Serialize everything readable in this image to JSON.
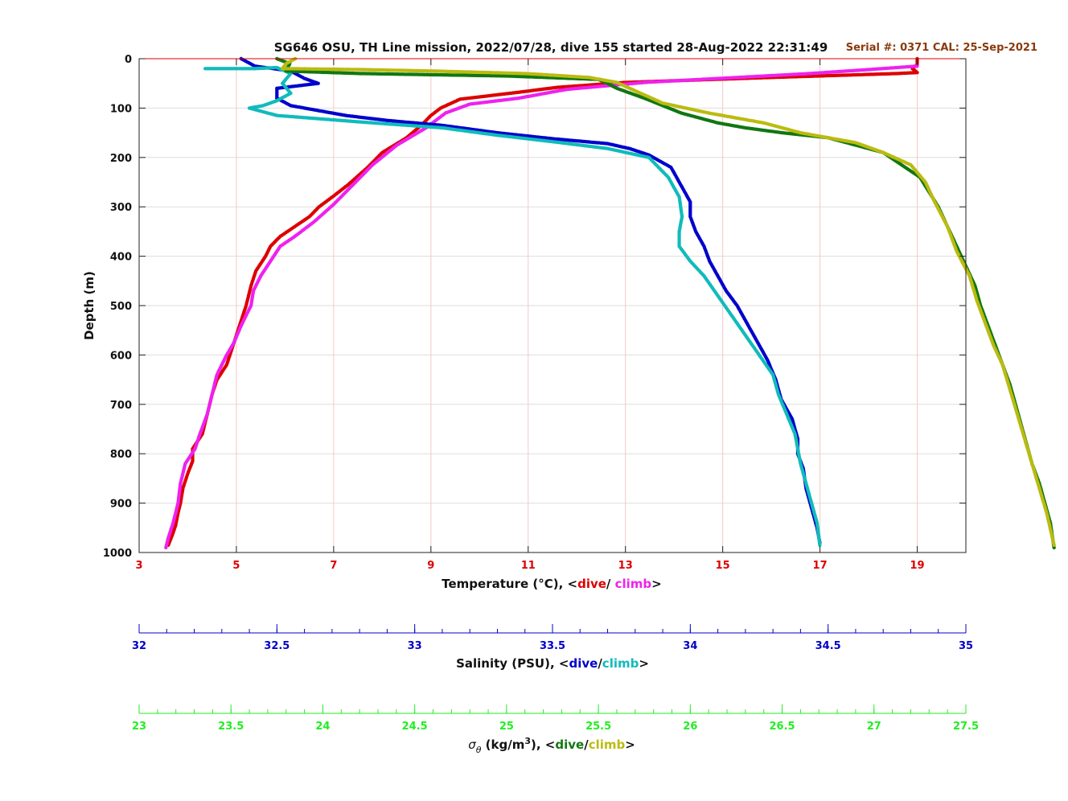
{
  "chart_data": {
    "type": "scatter",
    "title": "SG646 OSU, TH Line mission, 2022/07/28, dive 155 started 28-Aug-2022 22:31:49",
    "annotation": "Serial #: 0371  CAL: 25-Sep-2021",
    "grid": true,
    "y_axis": {
      "label": "Depth (m)",
      "reversed": true,
      "range": [
        0,
        1000
      ],
      "ticks": [
        "0",
        "100",
        "200",
        "300",
        "400",
        "500",
        "600",
        "700",
        "800",
        "900",
        "1000"
      ]
    },
    "x_axes": [
      {
        "key": "temperature",
        "label_prefix": "Temperature (°C), <",
        "label_dive": "dive",
        "label_sep": "/ ",
        "label_climb": "climb",
        "label_suffix": ">",
        "range": [
          3,
          20
        ],
        "ticks": [
          "3",
          "5",
          "7",
          "9",
          "11",
          "13",
          "15",
          "17",
          "19"
        ],
        "color": "#dd0000"
      },
      {
        "key": "salinity",
        "label_prefix": "Salinity (PSU), <",
        "label_dive": "dive",
        "label_sep": "/",
        "label_climb": "climb",
        "label_suffix": ">",
        "range": [
          32,
          35
        ],
        "ticks": [
          "32",
          "32.5",
          "33",
          "33.5",
          "34",
          "34.5",
          "35"
        ],
        "color": "#0000cc"
      },
      {
        "key": "sigma",
        "label_symbol": "σ",
        "label_sub": "θ",
        "label_unit": " (kg/m",
        "label_sup": "3",
        "label_prefix": "), <",
        "label_dive": "dive",
        "label_sep": "/",
        "label_climb": "climb",
        "label_suffix": ">",
        "range": [
          23,
          27.5
        ],
        "ticks": [
          "23",
          "23.5",
          "24",
          "24.5",
          "25",
          "25.5",
          "26",
          "26.5",
          "27",
          "27.5"
        ],
        "color": "#22ee22"
      }
    ],
    "series": [
      {
        "name": "dive",
        "axis": "temperature",
        "color": "#dd0000",
        "points": [
          [
            19.0,
            0
          ],
          [
            19.0,
            5
          ],
          [
            19.0,
            12
          ],
          [
            18.9,
            20
          ],
          [
            19.0,
            28
          ],
          [
            18.6,
            30
          ],
          [
            16.0,
            38
          ],
          [
            13.0,
            48
          ],
          [
            11.6,
            58
          ],
          [
            10.8,
            68
          ],
          [
            9.6,
            82
          ],
          [
            9.2,
            100
          ],
          [
            9.0,
            115
          ],
          [
            8.8,
            135
          ],
          [
            8.5,
            160
          ],
          [
            8.0,
            190
          ],
          [
            7.7,
            220
          ],
          [
            7.3,
            255
          ],
          [
            7.0,
            278
          ],
          [
            6.7,
            300
          ],
          [
            6.5,
            320
          ],
          [
            6.2,
            340
          ],
          [
            5.9,
            360
          ],
          [
            5.7,
            380
          ],
          [
            5.6,
            400
          ],
          [
            5.4,
            430
          ],
          [
            5.3,
            460
          ],
          [
            5.2,
            500
          ],
          [
            5.1,
            530
          ],
          [
            5.0,
            560
          ],
          [
            4.9,
            590
          ],
          [
            4.8,
            620
          ],
          [
            4.6,
            650
          ],
          [
            4.5,
            680
          ],
          [
            4.4,
            720
          ],
          [
            4.3,
            760
          ],
          [
            4.1,
            790
          ],
          [
            4.1,
            815
          ],
          [
            4.0,
            840
          ],
          [
            3.9,
            870
          ],
          [
            3.85,
            900
          ],
          [
            3.8,
            920
          ],
          [
            3.75,
            945
          ],
          [
            3.7,
            960
          ],
          [
            3.6,
            985
          ]
        ]
      },
      {
        "name": "climb",
        "axis": "temperature",
        "color": "#ee22ee",
        "points": [
          [
            19.0,
            15
          ],
          [
            18.0,
            22
          ],
          [
            16.8,
            30
          ],
          [
            15.3,
            38
          ],
          [
            13.4,
            48
          ],
          [
            11.8,
            62
          ],
          [
            10.8,
            80
          ],
          [
            9.8,
            92
          ],
          [
            9.3,
            110
          ],
          [
            8.9,
            140
          ],
          [
            8.3,
            175
          ],
          [
            7.8,
            215
          ],
          [
            7.4,
            255
          ],
          [
            7.0,
            295
          ],
          [
            6.6,
            330
          ],
          [
            6.2,
            360
          ],
          [
            5.9,
            380
          ],
          [
            5.7,
            410
          ],
          [
            5.5,
            440
          ],
          [
            5.35,
            470
          ],
          [
            5.3,
            500
          ],
          [
            5.1,
            540
          ],
          [
            4.95,
            575
          ],
          [
            4.8,
            600
          ],
          [
            4.6,
            640
          ],
          [
            4.5,
            680
          ],
          [
            4.4,
            720
          ],
          [
            4.25,
            760
          ],
          [
            4.15,
            790
          ],
          [
            3.95,
            820
          ],
          [
            3.85,
            860
          ],
          [
            3.8,
            900
          ],
          [
            3.7,
            940
          ],
          [
            3.6,
            970
          ],
          [
            3.55,
            990
          ]
        ]
      },
      {
        "name": "dive",
        "axis": "salinity",
        "color": "#0000cc",
        "points": [
          [
            32.37,
            0
          ],
          [
            32.42,
            15
          ],
          [
            32.55,
            25
          ],
          [
            32.6,
            40
          ],
          [
            32.65,
            50
          ],
          [
            32.5,
            60
          ],
          [
            32.5,
            80
          ],
          [
            32.55,
            95
          ],
          [
            32.65,
            105
          ],
          [
            32.75,
            115
          ],
          [
            32.9,
            125
          ],
          [
            33.1,
            135
          ],
          [
            33.3,
            150
          ],
          [
            33.5,
            162
          ],
          [
            33.7,
            172
          ],
          [
            33.78,
            182
          ],
          [
            33.85,
            195
          ],
          [
            33.93,
            220
          ],
          [
            33.97,
            260
          ],
          [
            34.0,
            290
          ],
          [
            34.0,
            320
          ],
          [
            34.02,
            350
          ],
          [
            34.05,
            380
          ],
          [
            34.07,
            410
          ],
          [
            34.1,
            440
          ],
          [
            34.13,
            470
          ],
          [
            34.17,
            500
          ],
          [
            34.2,
            530
          ],
          [
            34.24,
            570
          ],
          [
            34.28,
            610
          ],
          [
            34.31,
            650
          ],
          [
            34.33,
            690
          ],
          [
            34.37,
            730
          ],
          [
            34.39,
            770
          ],
          [
            34.39,
            800
          ],
          [
            34.41,
            830
          ],
          [
            34.42,
            870
          ],
          [
            34.44,
            910
          ],
          [
            34.46,
            950
          ],
          [
            34.47,
            980
          ]
        ]
      },
      {
        "name": "climb",
        "axis": "salinity",
        "color": "#11bbbb",
        "points": [
          [
            32.24,
            20
          ],
          [
            32.42,
            20
          ],
          [
            32.5,
            18
          ],
          [
            32.55,
            30
          ],
          [
            32.52,
            50
          ],
          [
            32.55,
            70
          ],
          [
            32.5,
            85
          ],
          [
            32.45,
            95
          ],
          [
            32.4,
            100
          ],
          [
            32.5,
            115
          ],
          [
            32.8,
            128
          ],
          [
            33.1,
            140
          ],
          [
            33.3,
            155
          ],
          [
            33.5,
            168
          ],
          [
            33.7,
            182
          ],
          [
            33.85,
            200
          ],
          [
            33.92,
            240
          ],
          [
            33.96,
            280
          ],
          [
            33.97,
            320
          ],
          [
            33.96,
            350
          ],
          [
            33.96,
            380
          ],
          [
            34.0,
            410
          ],
          [
            34.05,
            440
          ],
          [
            34.1,
            480
          ],
          [
            34.15,
            520
          ],
          [
            34.2,
            560
          ],
          [
            34.25,
            600
          ],
          [
            34.3,
            640
          ],
          [
            34.32,
            680
          ],
          [
            34.35,
            720
          ],
          [
            34.38,
            760
          ],
          [
            34.39,
            790
          ],
          [
            34.4,
            820
          ],
          [
            34.42,
            860
          ],
          [
            34.44,
            900
          ],
          [
            34.46,
            940
          ],
          [
            34.47,
            985
          ]
        ]
      },
      {
        "name": "dive",
        "axis": "sigma",
        "color": "#117711",
        "points": [
          [
            23.75,
            0
          ],
          [
            23.82,
            10
          ],
          [
            23.8,
            25
          ],
          [
            24.2,
            30
          ],
          [
            25.0,
            35
          ],
          [
            25.5,
            42
          ],
          [
            25.55,
            50
          ],
          [
            25.6,
            60
          ],
          [
            25.75,
            80
          ],
          [
            25.95,
            110
          ],
          [
            26.15,
            130
          ],
          [
            26.3,
            140
          ],
          [
            26.5,
            150
          ],
          [
            26.75,
            160
          ],
          [
            26.9,
            175
          ],
          [
            27.05,
            190
          ],
          [
            27.15,
            215
          ],
          [
            27.25,
            240
          ],
          [
            27.3,
            270
          ],
          [
            27.35,
            300
          ],
          [
            27.4,
            340
          ],
          [
            27.45,
            380
          ],
          [
            27.5,
            420
          ],
          [
            27.55,
            460
          ],
          [
            27.58,
            500
          ],
          [
            27.62,
            540
          ],
          [
            27.66,
            580
          ],
          [
            27.7,
            620
          ],
          [
            27.74,
            660
          ],
          [
            27.77,
            700
          ],
          [
            27.8,
            740
          ],
          [
            27.83,
            780
          ],
          [
            27.86,
            820
          ],
          [
            27.9,
            860
          ],
          [
            27.93,
            900
          ],
          [
            27.96,
            940
          ],
          [
            27.98,
            990
          ]
        ]
      },
      {
        "name": "climb",
        "axis": "sigma",
        "color": "#bbbb11",
        "points": [
          [
            23.85,
            0
          ],
          [
            23.8,
            10
          ],
          [
            23.78,
            20
          ],
          [
            24.2,
            22
          ],
          [
            24.6,
            25
          ],
          [
            25.1,
            30
          ],
          [
            25.45,
            38
          ],
          [
            25.6,
            48
          ],
          [
            25.7,
            65
          ],
          [
            25.85,
            90
          ],
          [
            26.1,
            110
          ],
          [
            26.4,
            130
          ],
          [
            26.6,
            150
          ],
          [
            26.9,
            170
          ],
          [
            27.05,
            190
          ],
          [
            27.2,
            215
          ],
          [
            27.28,
            250
          ],
          [
            27.33,
            290
          ],
          [
            27.4,
            340
          ],
          [
            27.45,
            390
          ],
          [
            27.52,
            440
          ],
          [
            27.56,
            490
          ],
          [
            27.6,
            530
          ],
          [
            27.65,
            580
          ],
          [
            27.7,
            620
          ],
          [
            27.74,
            670
          ],
          [
            27.78,
            720
          ],
          [
            27.82,
            770
          ],
          [
            27.86,
            820
          ],
          [
            27.9,
            870
          ],
          [
            27.94,
            920
          ],
          [
            27.98,
            985
          ]
        ]
      }
    ]
  }
}
